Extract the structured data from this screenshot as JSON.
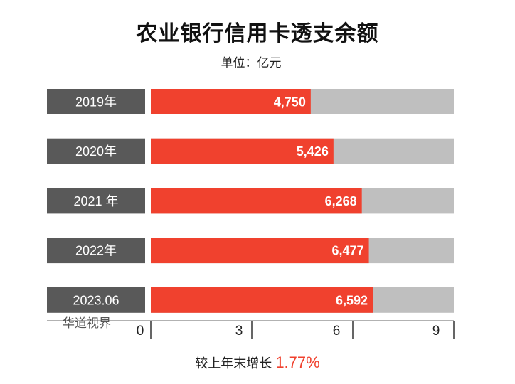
{
  "header": {
    "title": "农业银行信用卡透支余额",
    "unit": "单位：亿元"
  },
  "watermark": "华道视界",
  "footnote": {
    "text": "较上年末增长",
    "value": "1.77%"
  },
  "chart_data": {
    "type": "bar",
    "orientation": "horizontal",
    "title": "农业银行信用卡透支余额",
    "unit": "单位：亿元",
    "categories": [
      "2019年",
      "2020年",
      "2021 年",
      "2022年",
      "2023.06"
    ],
    "values": [
      4750,
      5426,
      6268,
      6477,
      6592
    ],
    "value_labels": [
      "4,750",
      "5,426",
      "6,268",
      "6,477",
      "6,592"
    ],
    "x_ticks": [
      "0",
      "3",
      "6",
      "9"
    ],
    "track_max": 9000,
    "colors": {
      "bar": "#f0412e",
      "track": "#bfbfbf",
      "category_box": "#595959",
      "category_text": "#ffffff",
      "value_text": "#ffffff",
      "axis": "#666666"
    }
  }
}
